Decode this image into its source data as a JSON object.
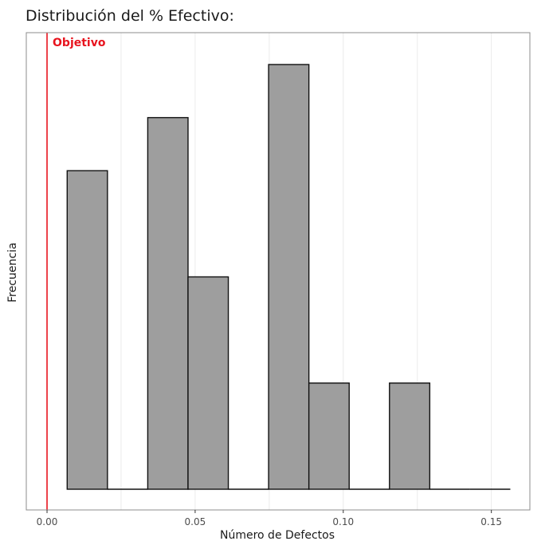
{
  "chart_data": {
    "type": "bar",
    "title": "Distribución del % Efectivo:",
    "xlabel": "Número de Defectos",
    "ylabel": "Frecuencia",
    "xlim": [
      -0.007,
      0.163
    ],
    "ylim": [
      0,
      4.3
    ],
    "x_ticks": [
      0.0,
      0.05,
      0.1,
      0.15
    ],
    "x_tick_labels": [
      "0.00",
      "0.05",
      "0.10",
      "0.15"
    ],
    "bins": [
      {
        "x0": 0.0068,
        "x1": 0.0204,
        "value": 3
      },
      {
        "x0": 0.0204,
        "x1": 0.034,
        "value": 0
      },
      {
        "x0": 0.034,
        "x1": 0.0476,
        "value": 3.5
      },
      {
        "x0": 0.0476,
        "x1": 0.0612,
        "value": 2
      },
      {
        "x0": 0.0612,
        "x1": 0.0748,
        "value": 0
      },
      {
        "x0": 0.0748,
        "x1": 0.0884,
        "value": 4
      },
      {
        "x0": 0.0884,
        "x1": 0.102,
        "value": 1
      },
      {
        "x0": 0.102,
        "x1": 0.1156,
        "value": 0
      },
      {
        "x0": 0.1156,
        "x1": 0.1292,
        "value": 1
      },
      {
        "x0": 0.1292,
        "x1": 0.1428,
        "value": 0
      },
      {
        "x0": 0.1428,
        "x1": 0.1564,
        "value": 0
      }
    ],
    "target": {
      "x": 0.0,
      "label": "Objetivo",
      "color": "#e8141e"
    },
    "bar_fill": "#9e9e9e",
    "bar_stroke": "#111111",
    "grid": true,
    "grid_color": "#ebebeb",
    "panel_border": "#8c8c8c"
  }
}
